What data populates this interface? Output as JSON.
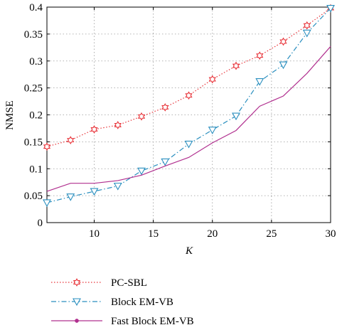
{
  "chart_data": {
    "type": "line",
    "title": "",
    "xlabel": "K",
    "ylabel": "NMSE",
    "xlim": [
      6,
      30
    ],
    "ylim": [
      0,
      0.4
    ],
    "xticks": [
      10,
      15,
      20,
      25,
      30
    ],
    "yticks": [
      0,
      0.05,
      0.1,
      0.15,
      0.2,
      0.25,
      0.3,
      0.35,
      0.4
    ],
    "xtick_labels": [
      "10",
      "15",
      "20",
      "25",
      "30"
    ],
    "ytick_labels": [
      "0",
      "0.05",
      "0.1",
      "0.15",
      "0.2",
      "0.25",
      "0.3",
      "0.35",
      "0.4"
    ],
    "grid": true,
    "legend_position": "bottom-left",
    "x": [
      6,
      8,
      10,
      12,
      14,
      16,
      18,
      20,
      22,
      24,
      26,
      28,
      30
    ],
    "series": [
      {
        "name": "PC-SBL",
        "color": "#e8343a",
        "dash": "dotted",
        "marker": "star",
        "values": [
          0.141,
          0.153,
          0.173,
          0.181,
          0.197,
          0.214,
          0.236,
          0.266,
          0.291,
          0.31,
          0.336,
          0.366,
          0.398
        ]
      },
      {
        "name": "Block EM-VB",
        "color": "#2a8fbf",
        "dash": "dashdot",
        "marker": "triangle-down",
        "values": [
          0.037,
          0.048,
          0.058,
          0.068,
          0.096,
          0.113,
          0.146,
          0.172,
          0.198,
          0.262,
          0.293,
          0.352,
          0.398
        ]
      },
      {
        "name": "Fast Block EM-VB",
        "color": "#b1308f",
        "dash": "solid",
        "marker": "dot",
        "marker_at": "legend",
        "values": [
          0.058,
          0.073,
          0.073,
          0.078,
          0.088,
          0.105,
          0.121,
          0.148,
          0.171,
          0.216,
          0.235,
          0.277,
          0.327
        ]
      }
    ]
  }
}
